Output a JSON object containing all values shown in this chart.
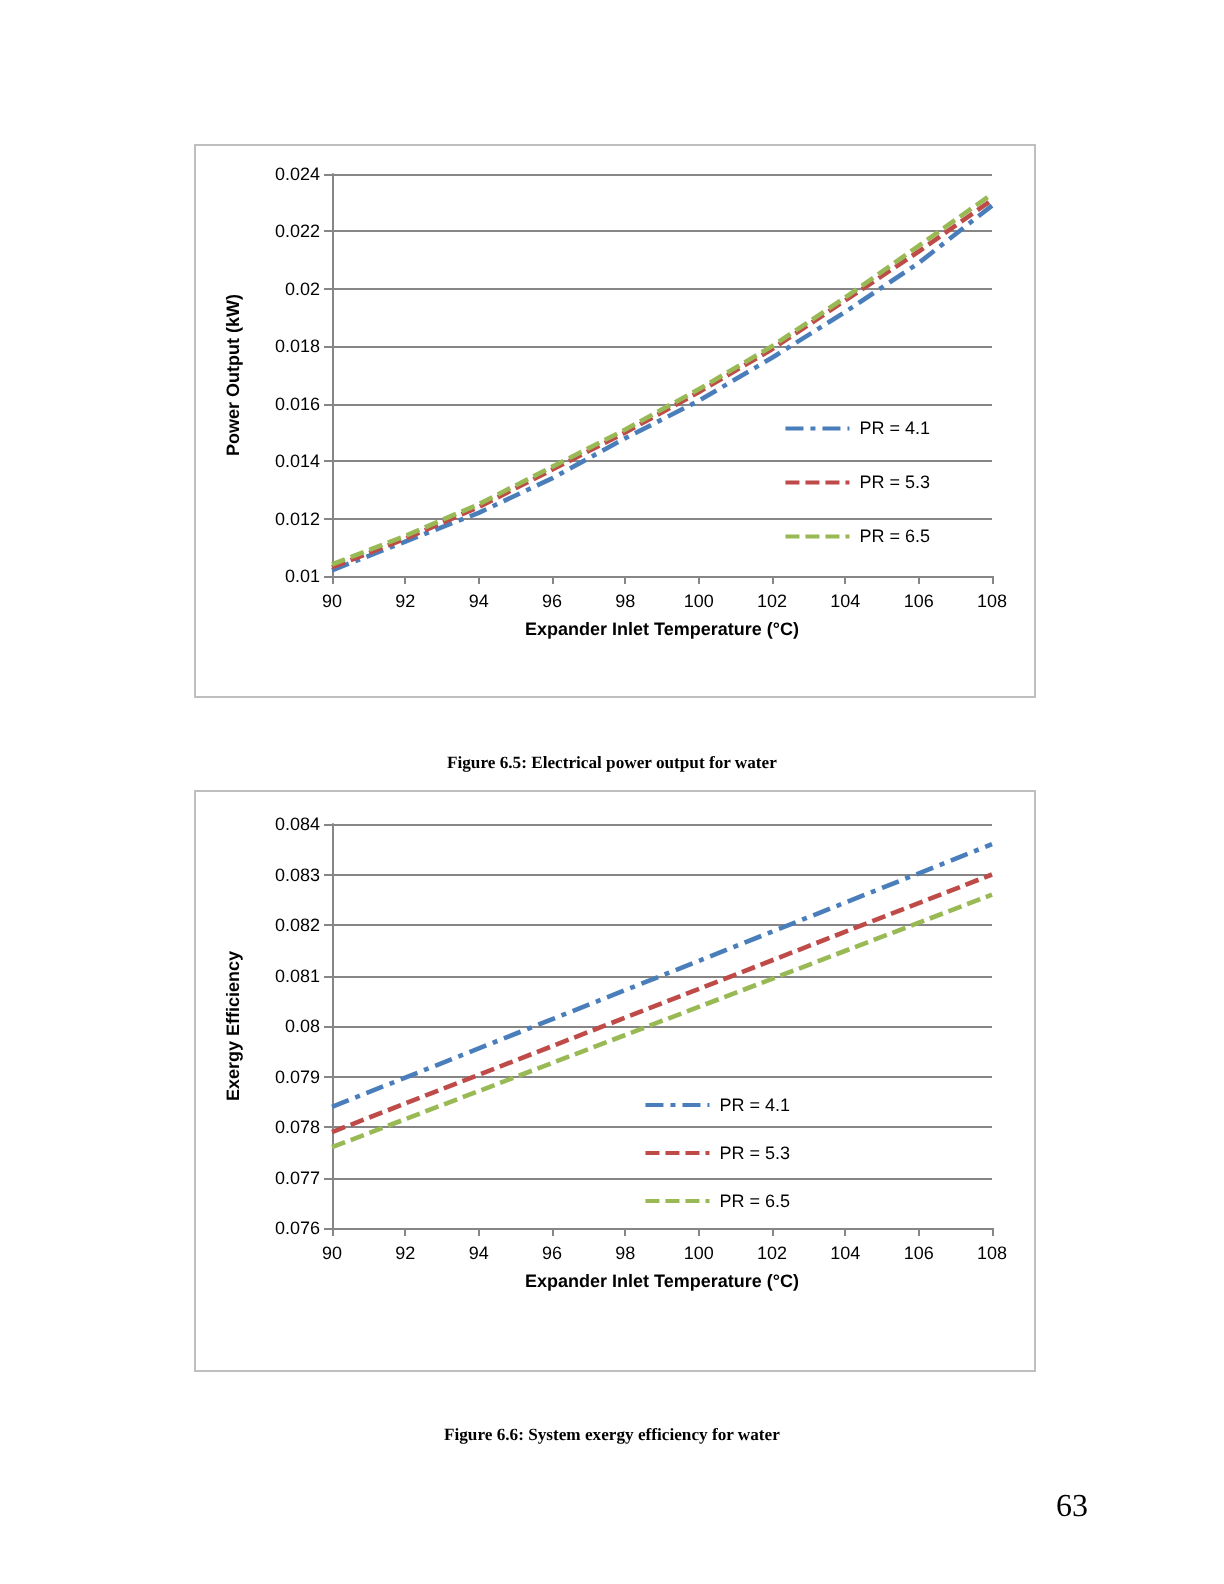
{
  "chart_data": [
    {
      "type": "line",
      "xlabel": "Expander Inlet Temperature (°C)",
      "ylabel": "Power Output (kW)",
      "annotations": [
        "Figure 6.5: Electrical power output for water"
      ],
      "x": [
        90,
        92,
        94,
        96,
        98,
        100,
        102,
        104,
        106,
        108
      ],
      "series": [
        {
          "name": "PR = 4.1",
          "color": "#4a7ebb",
          "line_style": "dashdot",
          "values": [
            0.0102,
            0.0112,
            0.0122,
            0.0134,
            0.0148,
            0.0161,
            0.0176,
            0.0192,
            0.0209,
            0.0229
          ]
        },
        {
          "name": "PR = 5.3",
          "color": "#be4b48",
          "line_style": "dashed",
          "values": [
            0.0103,
            0.0113,
            0.0124,
            0.0137,
            0.015,
            0.0164,
            0.0179,
            0.0196,
            0.0213,
            0.0231
          ]
        },
        {
          "name": "PR = 6.5",
          "color": "#98b954",
          "line_style": "dashed",
          "values": [
            0.0104,
            0.0114,
            0.0125,
            0.0138,
            0.0151,
            0.0165,
            0.018,
            0.0197,
            0.0215,
            0.0233
          ]
        }
      ],
      "xlim": [
        90,
        108
      ],
      "xticks": [
        90,
        92,
        94,
        96,
        98,
        100,
        102,
        104,
        106,
        108
      ],
      "ylim": [
        0.01,
        0.024
      ],
      "yticks": [
        0.01,
        0.012,
        0.014,
        0.016,
        0.018,
        0.02,
        0.022,
        0.024
      ],
      "grid": "y",
      "legend": "right",
      "marker": "none"
    },
    {
      "type": "line",
      "xlabel": "Expander Inlet Temperature (°C)",
      "ylabel": "Exergy Efficiency",
      "annotations": [
        "Figure 6.6: System exergy efficiency for water",
        "63"
      ],
      "x": [
        90,
        108
      ],
      "series": [
        {
          "name": "PR = 4.1",
          "color": "#4a7ebb",
          "line_style": "dashdot",
          "values": [
            0.0784,
            0.0836
          ]
        },
        {
          "name": "PR = 5.3",
          "color": "#be4b48",
          "line_style": "dashed",
          "values": [
            0.0779,
            0.083
          ]
        },
        {
          "name": "PR = 6.5",
          "color": "#98b954",
          "line_style": "dashed",
          "values": [
            0.0776,
            0.0826
          ]
        }
      ],
      "xlim": [
        90,
        108
      ],
      "xticks": [
        90,
        92,
        94,
        96,
        98,
        100,
        102,
        104,
        106,
        108
      ],
      "ylim": [
        0.076,
        0.084
      ],
      "yticks": [
        0.076,
        0.077,
        0.078,
        0.079,
        0.08,
        0.081,
        0.082,
        0.083,
        0.084
      ],
      "grid": "y",
      "legend": "bottom right",
      "marker": "none"
    }
  ]
}
